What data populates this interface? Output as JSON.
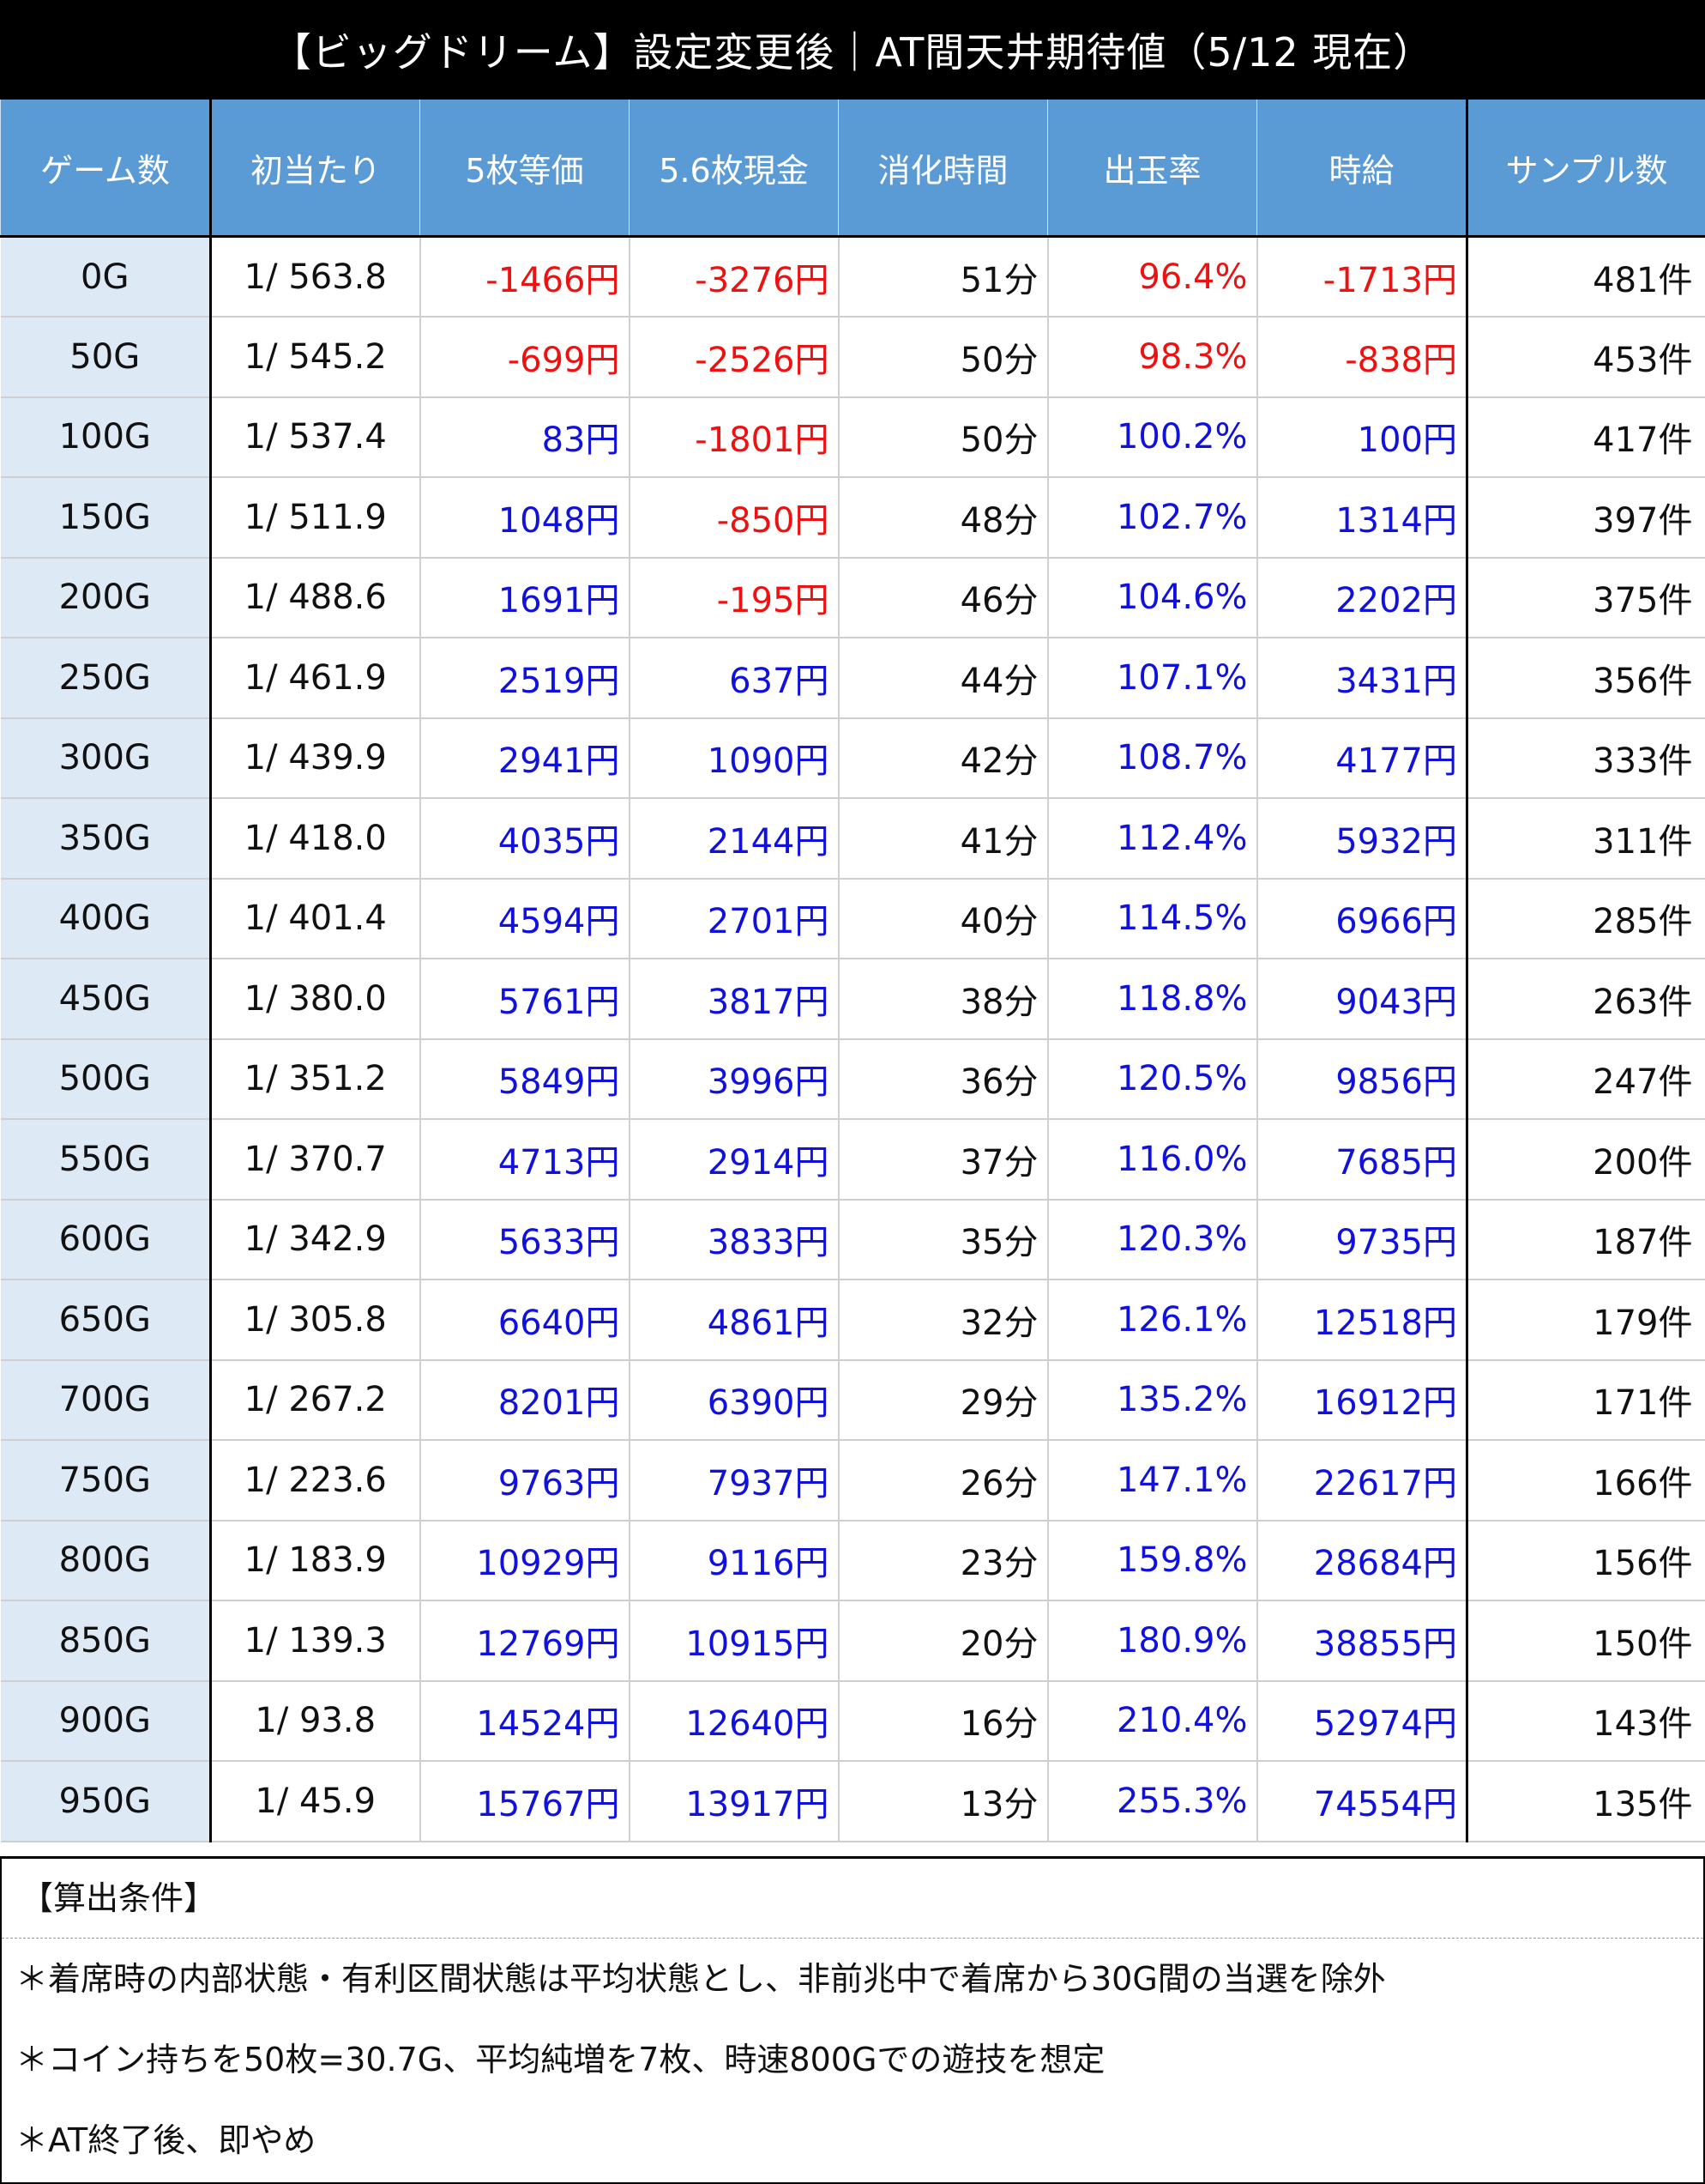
{
  "title": "【ビッグドリーム】設定変更後｜AT間天井期待値（5/12 現在）",
  "colors": {
    "header_bg": "#5b9bd5",
    "negative": "#ee1111",
    "positive": "#1111dd",
    "first_col_bg": "#ddeaf6"
  },
  "table": {
    "headers": [
      "ゲーム数",
      "初当たり",
      "5枚等価",
      "5.6枚現金",
      "消化時間",
      "出玉率",
      "時給",
      "サンプル数"
    ],
    "rows": [
      {
        "game": "0G",
        "first": "1/ 563.8",
        "eq5": "-1466円",
        "cash56": "-3276円",
        "time": "51分",
        "payout": "96.4%",
        "hourly": "-1713円",
        "samples": "481件"
      },
      {
        "game": "50G",
        "first": "1/ 545.2",
        "eq5": "-699円",
        "cash56": "-2526円",
        "time": "50分",
        "payout": "98.3%",
        "hourly": "-838円",
        "samples": "453件"
      },
      {
        "game": "100G",
        "first": "1/ 537.4",
        "eq5": "83円",
        "cash56": "-1801円",
        "time": "50分",
        "payout": "100.2%",
        "hourly": "100円",
        "samples": "417件"
      },
      {
        "game": "150G",
        "first": "1/ 511.9",
        "eq5": "1048円",
        "cash56": "-850円",
        "time": "48分",
        "payout": "102.7%",
        "hourly": "1314円",
        "samples": "397件"
      },
      {
        "game": "200G",
        "first": "1/ 488.6",
        "eq5": "1691円",
        "cash56": "-195円",
        "time": "46分",
        "payout": "104.6%",
        "hourly": "2202円",
        "samples": "375件"
      },
      {
        "game": "250G",
        "first": "1/ 461.9",
        "eq5": "2519円",
        "cash56": "637円",
        "time": "44分",
        "payout": "107.1%",
        "hourly": "3431円",
        "samples": "356件"
      },
      {
        "game": "300G",
        "first": "1/ 439.9",
        "eq5": "2941円",
        "cash56": "1090円",
        "time": "42分",
        "payout": "108.7%",
        "hourly": "4177円",
        "samples": "333件"
      },
      {
        "game": "350G",
        "first": "1/ 418.0",
        "eq5": "4035円",
        "cash56": "2144円",
        "time": "41分",
        "payout": "112.4%",
        "hourly": "5932円",
        "samples": "311件"
      },
      {
        "game": "400G",
        "first": "1/ 401.4",
        "eq5": "4594円",
        "cash56": "2701円",
        "time": "40分",
        "payout": "114.5%",
        "hourly": "6966円",
        "samples": "285件"
      },
      {
        "game": "450G",
        "first": "1/ 380.0",
        "eq5": "5761円",
        "cash56": "3817円",
        "time": "38分",
        "payout": "118.8%",
        "hourly": "9043円",
        "samples": "263件"
      },
      {
        "game": "500G",
        "first": "1/ 351.2",
        "eq5": "5849円",
        "cash56": "3996円",
        "time": "36分",
        "payout": "120.5%",
        "hourly": "9856円",
        "samples": "247件"
      },
      {
        "game": "550G",
        "first": "1/ 370.7",
        "eq5": "4713円",
        "cash56": "2914円",
        "time": "37分",
        "payout": "116.0%",
        "hourly": "7685円",
        "samples": "200件"
      },
      {
        "game": "600G",
        "first": "1/ 342.9",
        "eq5": "5633円",
        "cash56": "3833円",
        "time": "35分",
        "payout": "120.3%",
        "hourly": "9735円",
        "samples": "187件"
      },
      {
        "game": "650G",
        "first": "1/ 305.8",
        "eq5": "6640円",
        "cash56": "4861円",
        "time": "32分",
        "payout": "126.1%",
        "hourly": "12518円",
        "samples": "179件"
      },
      {
        "game": "700G",
        "first": "1/ 267.2",
        "eq5": "8201円",
        "cash56": "6390円",
        "time": "29分",
        "payout": "135.2%",
        "hourly": "16912円",
        "samples": "171件"
      },
      {
        "game": "750G",
        "first": "1/ 223.6",
        "eq5": "9763円",
        "cash56": "7937円",
        "time": "26分",
        "payout": "147.1%",
        "hourly": "22617円",
        "samples": "166件"
      },
      {
        "game": "800G",
        "first": "1/ 183.9",
        "eq5": "10929円",
        "cash56": "9116円",
        "time": "23分",
        "payout": "159.8%",
        "hourly": "28684円",
        "samples": "156件"
      },
      {
        "game": "850G",
        "first": "1/ 139.3",
        "eq5": "12769円",
        "cash56": "10915円",
        "time": "20分",
        "payout": "180.9%",
        "hourly": "38855円",
        "samples": "150件"
      },
      {
        "game": "900G",
        "first": "1/ 93.8",
        "eq5": "14524円",
        "cash56": "12640円",
        "time": "16分",
        "payout": "210.4%",
        "hourly": "52974円",
        "samples": "143件"
      },
      {
        "game": "950G",
        "first": "1/ 45.9",
        "eq5": "15767円",
        "cash56": "13917円",
        "time": "13分",
        "payout": "255.3%",
        "hourly": "74554円",
        "samples": "135件"
      }
    ]
  },
  "conditions": {
    "heading": "【算出条件】",
    "notes": [
      "＊着席時の内部状態・有利区間状態は平均状態とし、非前兆中で着席から30G間の当選を除外",
      "＊コイン持ちを50枚=30.7G、平均純増を7枚、時速800Gでの遊技を想定",
      "＊AT終了後、即やめ"
    ]
  }
}
